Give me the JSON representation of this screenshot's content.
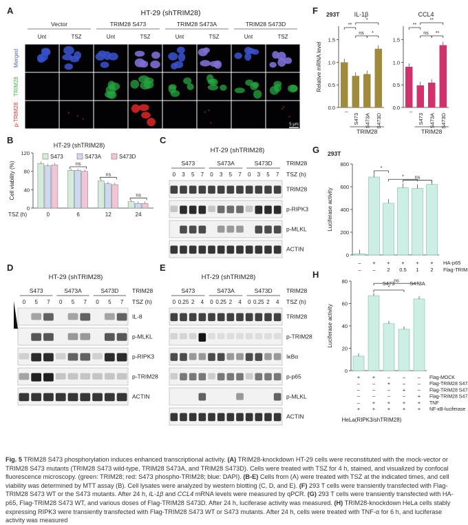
{
  "panelA": {
    "letter": "A",
    "title": "HT-29 (shTRIM28)",
    "groups": [
      "Vector",
      "TRIM28 S473",
      "TRIM28 S473A",
      "TRIM28 S473D"
    ],
    "conditions": [
      "Unt",
      "TSZ",
      "Unt",
      "TSZ",
      "Unt",
      "TSZ",
      "Unt",
      "TSZ"
    ],
    "rows": [
      "Merged",
      "TRIM28",
      "p-TRIM28"
    ],
    "scalebar": "5 μm"
  },
  "panelB": {
    "letter": "B",
    "title": "HT-29 (shTRIM28)"
  },
  "panelC": {
    "letter": "C",
    "title": "HT-29 (shTRIM28)",
    "groups": [
      "S473",
      "S473A",
      "S473D"
    ],
    "group_label": "TRIM28",
    "times": [
      "0",
      "3",
      "5",
      "7",
      "0",
      "3",
      "5",
      "7",
      "0",
      "3",
      "5",
      "7"
    ],
    "time_label": "TSZ (h)",
    "blots": [
      "TRIM28",
      "p-RIPK3",
      "p-MLKL",
      "ACTIN"
    ]
  },
  "panelD": {
    "letter": "D",
    "title": "HT-29 (shTRIM28)",
    "groups": [
      "S473",
      "S473A",
      "S473D"
    ],
    "group_label": "TRIM28",
    "times": [
      "0",
      "5",
      "7",
      "0",
      "5",
      "7",
      "0",
      "5",
      "7"
    ],
    "time_label": "TSZ (h)",
    "blots": [
      "IL-8",
      "p-MLKL",
      "p-RIPK3",
      "p-TRIM28",
      "ACTIN"
    ]
  },
  "panelE": {
    "letter": "E",
    "title": "HT-29 (shTRIM28)",
    "groups": [
      "S473",
      "S473A",
      "S473D"
    ],
    "group_label": "TRIM28",
    "times": [
      "0",
      "0.25",
      "2",
      "4",
      "0",
      "0.25",
      "2",
      "4",
      "0",
      "0.25",
      "2",
      "4"
    ],
    "time_label": "TSZ (h)",
    "blots": [
      "TRIM28",
      "p-TRIM28",
      "IκBα",
      "p-p65",
      "p-MLKL",
      "ACTIN"
    ]
  },
  "panelF": {
    "letter": "F",
    "cell": "293T",
    "group_label": "TRIM28"
  },
  "panelG": {
    "letter": "G",
    "cell": "293T",
    "sub1": "S473",
    "sub2": "S473A"
  },
  "panelH": {
    "letter": "H",
    "subtitle": "HeLa(RIPK3/shTRIM28)"
  },
  "chart_data": [
    {
      "type": "bar",
      "panel": "B",
      "title": "HT-29 (shTRIM28)",
      "xlabel": "TSZ (h)",
      "ylabel": "Cell viability (%)",
      "categories": [
        "0",
        "6",
        "12",
        "24"
      ],
      "ylim": [
        0,
        120
      ],
      "yticks": [
        0,
        40,
        80,
        120
      ],
      "series": [
        {
          "name": "S473",
          "color": "#d4edda",
          "values": [
            97,
            82,
            59,
            14
          ]
        },
        {
          "name": "S473A",
          "color": "#cdd9f0",
          "values": [
            92,
            82,
            53,
            10
          ]
        },
        {
          "name": "S473D",
          "color": "#f3c4d6",
          "values": [
            94,
            80,
            51,
            10
          ]
        }
      ],
      "annotations": [
        "ns",
        "ns",
        "ns"
      ]
    },
    {
      "type": "bar",
      "panel": "F-left",
      "title": "IL-1β",
      "ylabel": "Relative mRNA level",
      "categories": [
        "–",
        "S473",
        "S473A",
        "S473D"
      ],
      "values": [
        1.0,
        0.7,
        0.74,
        1.3
      ],
      "color": "#a08a3c",
      "ylim": [
        0,
        1.8
      ],
      "yticks": [
        0.0,
        0.5,
        1.0,
        1.5
      ],
      "annotations": [
        "**",
        "*",
        "ns",
        "*"
      ]
    },
    {
      "type": "bar",
      "panel": "F-right",
      "title": "CCL4",
      "categories": [
        "–",
        "S473",
        "S473A",
        "S473D"
      ],
      "values": [
        0.9,
        0.49,
        0.55,
        1.38
      ],
      "color": "#d0326e",
      "ylim": [
        0,
        1.8
      ],
      "yticks": [
        0.0,
        0.5,
        1.0,
        1.5
      ],
      "annotations": [
        "**",
        "**",
        "ns",
        "**"
      ]
    },
    {
      "type": "bar",
      "panel": "G",
      "ylabel": "Luciferase activity",
      "categories": [
        "1",
        "2",
        "3",
        "4",
        "5",
        "6"
      ],
      "values": [
        10,
        685,
        455,
        592,
        585,
        620
      ],
      "color": "#cdeee4",
      "ylim": [
        0,
        800
      ],
      "yticks": [
        0,
        200,
        400,
        600,
        800
      ],
      "row_labels": [
        "HA-p65",
        "Flag-TRIM28 (μg)"
      ],
      "row_values": [
        [
          "–",
          "+",
          "+",
          "+",
          "+",
          "+"
        ],
        [
          "–",
          "–",
          "2",
          "0.5",
          "1",
          "2"
        ]
      ],
      "annotations": [
        "*",
        "*",
        "ns"
      ]
    },
    {
      "type": "bar",
      "panel": "H",
      "ylabel": "Luciferase activity",
      "categories": [
        "1",
        "2",
        "3",
        "4",
        "5"
      ],
      "values": [
        13,
        67,
        42,
        37,
        64
      ],
      "color": "#cdeee4",
      "ylim": [
        0,
        80
      ],
      "yticks": [
        0,
        20,
        40,
        60,
        80
      ],
      "row_labels": [
        "Flag-MOCK",
        "Flag-TRIM28 S473",
        "Flag-TRIM28 S473A",
        "Flag-TRIM28 S473D",
        "TNF",
        "NF-κB-luciferase"
      ],
      "row_values": [
        [
          "+",
          "+",
          "–",
          "–",
          "–"
        ],
        [
          "–",
          "–",
          "+",
          "–",
          "–"
        ],
        [
          "–",
          "–",
          "–",
          "+",
          "–"
        ],
        [
          "–",
          "–",
          "–",
          "–",
          "+"
        ],
        [
          "–",
          "+",
          "+",
          "+",
          "+"
        ],
        [
          "+",
          "+",
          "+",
          "+",
          "+"
        ]
      ],
      "annotations": [
        "*",
        "ns"
      ]
    }
  ],
  "caption": {
    "fig": "Fig. 5",
    "title": " TRIM28 S473 phosphorylation induces enhanced transcriptional activity.",
    "a_tag": "(A)",
    "a_text": " TRIM28-knockdown HT-29 cells were reconstituted with the mock-vector or TRIM28 S473 mutants (TRIM28 S473 wild-type, TRIM28 S473A, and TRIM28 S473D). Cells were treated with TSZ for 4 h, stained, and visualized by confocal fluorescence microscopy. (green: TRIM28; red: S473 phospho-TRIM28; blue: DAPI).",
    "be_tag": "(B-E)",
    "be_text": " Cells from (A) were treated with TSZ at the indicated times, and cell viability was determined by MTT assay (B). Cell lysates were analyzed by western blotting (C, D, and E).",
    "f_tag": "(F)",
    "f_text1": " 293 T cells were transiently transfected with Flag-TRIM28 S473 WT or the S473 mutants. After 24 h, ",
    "f_gene1": "IL-1β",
    "f_and": " and ",
    "f_gene2": "CCL4",
    "f_text2": " mRNA levels were measured by qPCR.",
    "g_tag": "(G)",
    "g_text": " 293 T cells were transiently transfected with HA-p65, Flag-TRIM28 S473 WT, and various doses of Flag-TRIM28 S473D. After 24 h, luciferase activity was measured.",
    "h_tag": "(H)",
    "h_text": " TRIM28-knockdown HeLa cells stably expressing RIPK3 were transiently transfected with Flag-TRIM28 S473 WT or S473 mutants. After 24 h, cells were treated with TNF-α for 6 h, and luciferase activity was measured"
  }
}
